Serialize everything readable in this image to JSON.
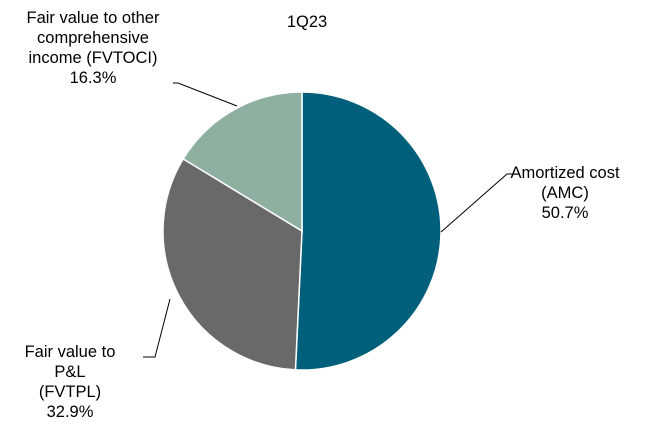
{
  "chart_data": {
    "type": "pie",
    "title": "1Q23",
    "slices": [
      {
        "name_lines": [
          "Amortized cost",
          "(AMC)"
        ],
        "value": 50.7,
        "value_label": "50.7%",
        "color": "#005F7A"
      },
      {
        "name_lines": [
          "Fair value to",
          "P&L",
          "(FVTPL)"
        ],
        "value": 32.9,
        "value_label": "32.9%",
        "color": "#696969"
      },
      {
        "name_lines": [
          "Fair value to other",
          "comprehensive",
          "income (FVTOCI)"
        ],
        "value": 16.3,
        "value_label": "16.3%",
        "color": "#8FB0A0"
      }
    ],
    "legend": "none",
    "start_angle": "12 o'clock",
    "direction": "clockwise"
  }
}
